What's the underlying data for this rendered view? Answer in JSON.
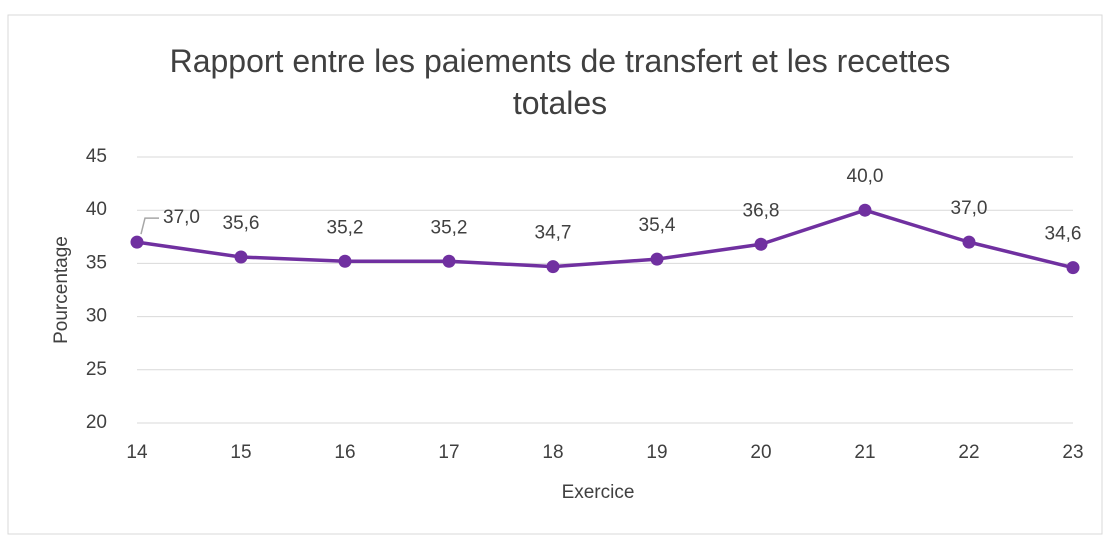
{
  "chart_data": {
    "type": "line",
    "title": "Rapport entre les paiements de transfert et les recettes totales",
    "x_label": "Exercice",
    "y_label": "Pourcentage",
    "categories": [
      "14",
      "15",
      "16",
      "17",
      "18",
      "19",
      "20",
      "21",
      "22",
      "23"
    ],
    "series": [
      {
        "name": "Rapport",
        "color": "#7030a0",
        "values": [
          37.0,
          35.6,
          35.2,
          35.2,
          34.7,
          35.4,
          36.8,
          40.0,
          37.0,
          34.6
        ],
        "value_labels": [
          "37,0",
          "35,6",
          "35,2",
          "35,2",
          "34,7",
          "35,4",
          "36,8",
          "40,0",
          "37,0",
          "34,6"
        ]
      }
    ],
    "ylim": [
      20,
      45
    ],
    "yticks": [
      20,
      25,
      30,
      35,
      40,
      45
    ],
    "grid": true
  }
}
